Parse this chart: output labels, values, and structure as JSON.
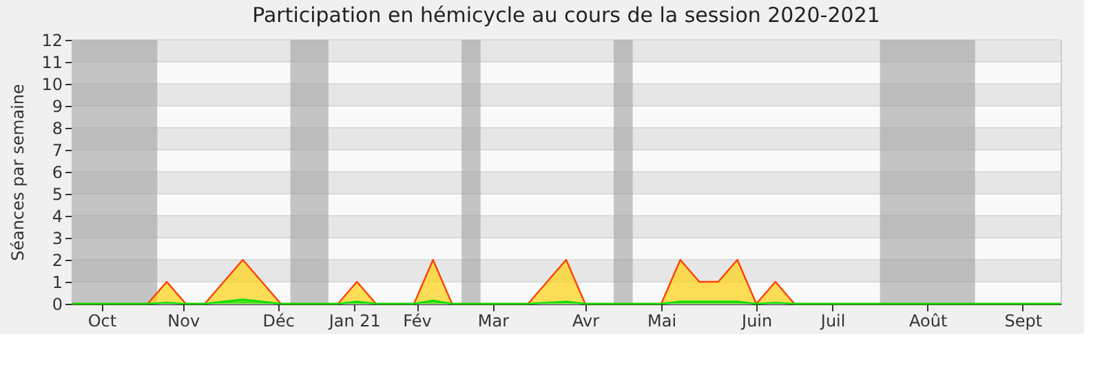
{
  "chart_data": {
    "type": "area",
    "title": "Participation en hémicycle au cours de la session 2020-2021",
    "ylabel": "Séances par semaine",
    "x": [
      "2020-09-28",
      "2020-10-05",
      "2020-10-12",
      "2020-10-19",
      "2020-10-26",
      "2020-11-02",
      "2020-11-09",
      "2020-11-16",
      "2020-11-23",
      "2020-11-30",
      "2020-12-07",
      "2020-12-14",
      "2020-12-21",
      "2020-12-28",
      "2021-01-04",
      "2021-01-11",
      "2021-01-18",
      "2021-01-25",
      "2021-02-01",
      "2021-02-08",
      "2021-02-15",
      "2021-02-22",
      "2021-03-01",
      "2021-03-08",
      "2021-03-15",
      "2021-03-22",
      "2021-03-29",
      "2021-04-05",
      "2021-04-12",
      "2021-04-19",
      "2021-04-26",
      "2021-05-03",
      "2021-05-10",
      "2021-05-17",
      "2021-05-24",
      "2021-05-31",
      "2021-06-07",
      "2021-06-14",
      "2021-06-21",
      "2021-06-28",
      "2021-07-05",
      "2021-07-12",
      "2021-07-19",
      "2021-07-26",
      "2021-08-02",
      "2021-08-09",
      "2021-08-16",
      "2021-08-23",
      "2021-08-30",
      "2021-09-06",
      "2021-09-13",
      "2021-09-20",
      "2021-09-27"
    ],
    "series": [
      {
        "color": "#ffd20f",
        "values": [
          0,
          0,
          0,
          0,
          0,
          1,
          0,
          0,
          1,
          2,
          1,
          0,
          0,
          0,
          0,
          1,
          0,
          0,
          0,
          2,
          0,
          0,
          0,
          0,
          0,
          1,
          2,
          0,
          0,
          0,
          0,
          0,
          2,
          1,
          1,
          2,
          0,
          1,
          0,
          0,
          0,
          0,
          0,
          0,
          0,
          0,
          0,
          0,
          0,
          0,
          0,
          0,
          0
        ]
      },
      {
        "color": "#00e000",
        "values": [
          0,
          0,
          0,
          0,
          0,
          0.05,
          0,
          0,
          0.1,
          0.2,
          0.1,
          0,
          0,
          0,
          0,
          0.1,
          0,
          0,
          0,
          0.15,
          0,
          0,
          0,
          0,
          0,
          0.05,
          0.1,
          0,
          0,
          0,
          0,
          0,
          0.1,
          0.1,
          0.1,
          0.1,
          0,
          0.05,
          0,
          0,
          0,
          0,
          0,
          0,
          0,
          0,
          0,
          0,
          0,
          0,
          0,
          0,
          0
        ]
      }
    ],
    "xlim": [
      "2020-09-28",
      "2021-09-27"
    ],
    "xticks": [
      {
        "value": "2020-10-09",
        "label": "Oct"
      },
      {
        "value": "2020-11-08",
        "label": "Nov"
      },
      {
        "value": "2020-12-13",
        "label": "Déc"
      },
      {
        "value": "2021-01-10",
        "label": "Jan 21"
      },
      {
        "value": "2021-02-02",
        "label": "Fév"
      },
      {
        "value": "2021-03-02",
        "label": "Mar"
      },
      {
        "value": "2021-04-05",
        "label": "Avr"
      },
      {
        "value": "2021-05-03",
        "label": "Mai"
      },
      {
        "value": "2021-06-07",
        "label": "Juin"
      },
      {
        "value": "2021-07-05",
        "label": "Juil"
      },
      {
        "value": "2021-08-09",
        "label": "Août"
      },
      {
        "value": "2021-09-13",
        "label": "Sept"
      }
    ],
    "ylim": [
      0,
      12
    ],
    "yticks": [
      0,
      1,
      2,
      3,
      4,
      5,
      6,
      7,
      8,
      9,
      10,
      11,
      12
    ],
    "grid": "y",
    "bands": [
      {
        "axis": "x",
        "from": "2020-09-28",
        "to": "2020-10-29T12:00",
        "color": "#a0a0a0"
      },
      {
        "axis": "x",
        "from": "2020-12-17T12:00",
        "to": "2020-12-31T12:00",
        "color": "#a0a0a0"
      },
      {
        "axis": "x",
        "from": "2021-02-18T12:00",
        "to": "2021-02-25T12:00",
        "color": "#a0a0a0"
      },
      {
        "axis": "x",
        "from": "2021-04-15T12:00",
        "to": "2021-04-22T12:00",
        "color": "#a0a0a0"
      },
      {
        "axis": "x",
        "from": "2021-07-22T12:00",
        "to": "2021-08-26T12:00",
        "color": "#a0a0a0"
      }
    ]
  }
}
